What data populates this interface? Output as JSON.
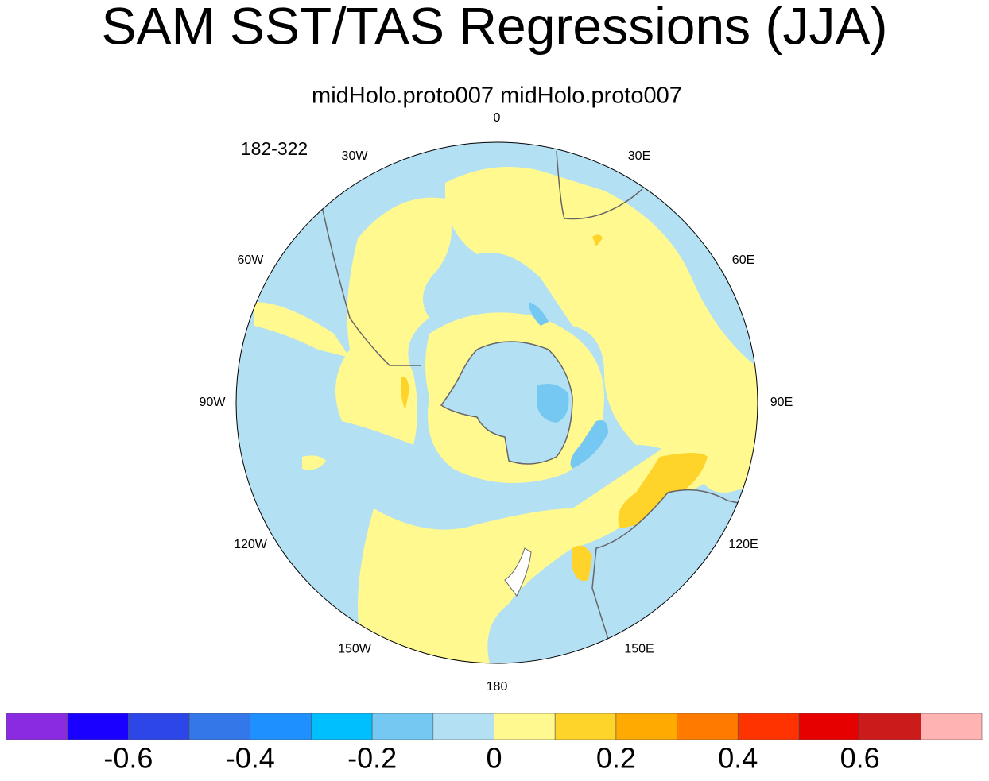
{
  "title": "SAM SST/TAS Regressions (JJA)",
  "subtitle": "midHolo.proto007  midHolo.proto007",
  "corner_label": "182-322",
  "longitude_labels": [
    "0",
    "30E",
    "60E",
    "90E",
    "120E",
    "150E",
    "180",
    "150W",
    "120W",
    "90W",
    "60W",
    "30W"
  ],
  "colorbar": {
    "colors": [
      "#8a2be2",
      "#1a00ff",
      "#2d46e8",
      "#3377e8",
      "#1e90ff",
      "#00bfff",
      "#74c8f2",
      "#b4e0f4",
      "#fff98f",
      "#ffd42a",
      "#ffaa00",
      "#ff7b00",
      "#ff3300",
      "#e60000",
      "#cc1b1b",
      "#ffb3b3"
    ],
    "xlim": [
      -0.8,
      0.8
    ],
    "xticks": [
      -0.6,
      -0.4,
      -0.2,
      0,
      0.2,
      0.4,
      0.6
    ]
  }
}
